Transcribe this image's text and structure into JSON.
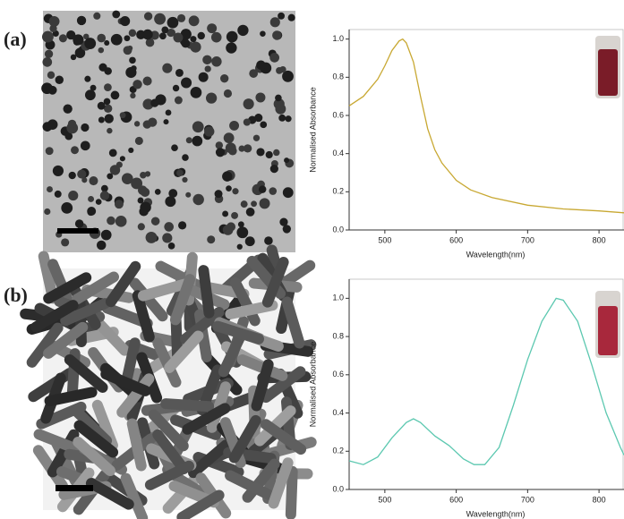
{
  "chart_data": [
    {
      "type": "line",
      "panel_label": "(a)",
      "xlabel": "Wavelength(nm)",
      "ylabel": "Normalised Absorbance",
      "x": [
        450,
        470,
        490,
        500,
        510,
        520,
        525,
        530,
        540,
        550,
        560,
        570,
        580,
        600,
        620,
        650,
        700,
        750,
        800,
        835
      ],
      "values": [
        0.65,
        0.7,
        0.79,
        0.86,
        0.94,
        0.99,
        1.0,
        0.98,
        0.88,
        0.7,
        0.53,
        0.42,
        0.35,
        0.26,
        0.21,
        0.17,
        0.13,
        0.11,
        0.1,
        0.09
      ],
      "color": "#c8a832",
      "xlim": [
        450,
        835
      ],
      "ylim": [
        0,
        1.05
      ],
      "xticks": [
        500,
        600,
        700,
        800
      ],
      "yticks": [
        {
          "value": 0,
          "label": "0.0"
        },
        0.2,
        0.4,
        0.6,
        0.8,
        {
          "value": 1,
          "label": "1.0"
        }
      ]
    },
    {
      "type": "line",
      "panel_label": "(b)",
      "xlabel": "Wavelength(nm)",
      "ylabel": "Normalised Absorbance",
      "x": [
        450,
        470,
        490,
        510,
        530,
        540,
        550,
        570,
        590,
        610,
        625,
        640,
        660,
        680,
        700,
        720,
        740,
        750,
        770,
        790,
        810,
        830,
        835
      ],
      "values": [
        0.15,
        0.13,
        0.17,
        0.27,
        0.35,
        0.37,
        0.35,
        0.28,
        0.23,
        0.16,
        0.13,
        0.13,
        0.22,
        0.44,
        0.68,
        0.88,
        1.0,
        0.99,
        0.88,
        0.65,
        0.4,
        0.22,
        0.18
      ],
      "color": "#5cc8b0",
      "xlim": [
        450,
        835
      ],
      "ylim": [
        0,
        1.1
      ],
      "xticks": [
        500,
        600,
        700,
        800
      ],
      "yticks": [
        {
          "value": 0,
          "label": "0.0"
        },
        0.2,
        0.4,
        0.6,
        0.8,
        {
          "value": 1,
          "label": "1.0"
        }
      ]
    }
  ]
}
